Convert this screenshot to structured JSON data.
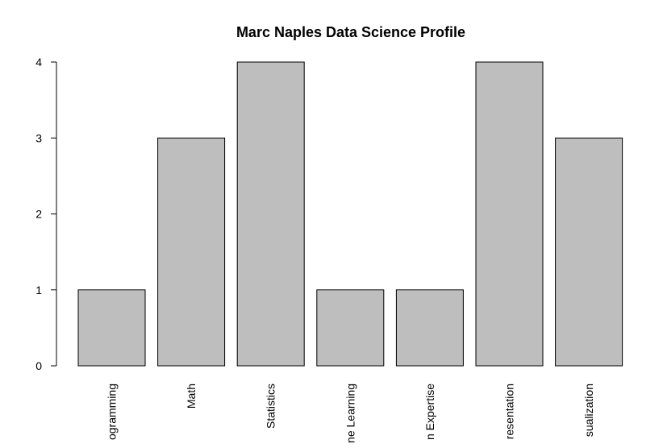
{
  "chart_data": {
    "type": "bar",
    "title": "Marc Naples Data Science Profile",
    "xlabel": "",
    "ylabel": "",
    "categories": [
      "Programming",
      "Math",
      "Statistics",
      "Machine Learning",
      "Domain Expertise",
      "Presentation",
      "Visualization"
    ],
    "category_labels_visible": [
      "ogramming",
      "Math",
      "Statistics",
      "ne Learning",
      "n Expertise",
      "resentation",
      "sualization"
    ],
    "values": [
      1,
      3,
      4,
      1,
      1,
      4,
      3
    ],
    "ylim": [
      0,
      4
    ],
    "yticks": [
      "0",
      "1",
      "2",
      "3",
      "4"
    ],
    "bar_color": "#bebebe",
    "grid": false,
    "legend": "none"
  }
}
